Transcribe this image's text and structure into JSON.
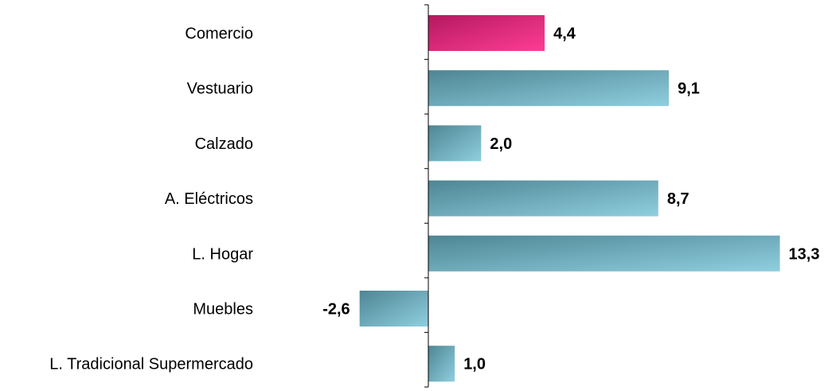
{
  "chart_data": {
    "type": "bar",
    "orientation": "horizontal",
    "categories": [
      "Comercio",
      "Vestuario",
      "Calzado",
      "A. Eléctricos",
      "L. Hogar",
      "Muebles",
      "L. Tradicional Supermercado"
    ],
    "values": [
      4.4,
      9.1,
      2.0,
      8.7,
      13.3,
      -2.6,
      1.0
    ],
    "value_labels": [
      "4,4",
      "9,1",
      "2,0",
      "8,7",
      "13,3",
      "-2,6",
      "1,0"
    ],
    "highlight_category": "Comercio",
    "colors": {
      "highlight_dark": "#b5185f",
      "highlight_light": "#ff3d94",
      "bar_dark": "#4e8593",
      "bar_light": "#8fcfdf",
      "axis": "#000000"
    },
    "xlim": [
      -3,
      13.6
    ],
    "title": "",
    "xlabel": "",
    "ylabel": "",
    "grid": false,
    "legend": "none"
  }
}
